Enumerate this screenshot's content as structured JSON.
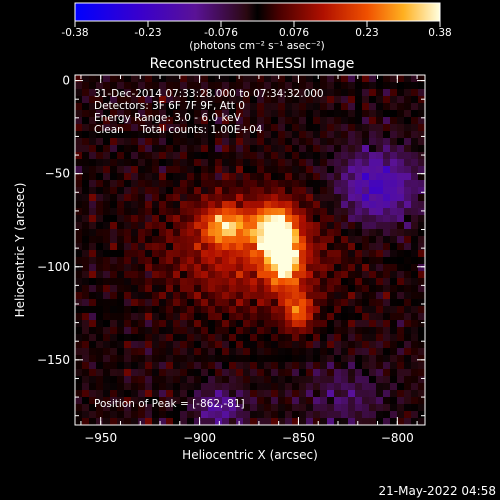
{
  "chart_data": {
    "type": "heatmap",
    "title": "Reconstructed RHESSI Image",
    "colorbar": {
      "range": [
        -0.38,
        0.38
      ],
      "ticks": [
        "-0.38",
        "-0.23",
        "-0.076",
        "0.076",
        "0.23",
        "0.38"
      ],
      "unit_label": "(photons cm⁻² s⁻¹ asec⁻²)"
    },
    "xlabel": "Heliocentric X (arcsec)",
    "ylabel": "Heliocentric Y (arcsec)",
    "xlim": [
      -963,
      -786
    ],
    "ylim": [
      -185,
      3
    ],
    "xticks": [
      {
        "value": -950,
        "label": "−950"
      },
      {
        "value": -900,
        "label": "−900"
      },
      {
        "value": -850,
        "label": "−850"
      },
      {
        "value": -800,
        "label": "−800"
      }
    ],
    "yticks": [
      {
        "value": 0,
        "label": "0"
      },
      {
        "value": -50,
        "label": "−50"
      },
      {
        "value": -100,
        "label": "−100"
      },
      {
        "value": -150,
        "label": "−150"
      }
    ],
    "info_lines": [
      "31-Dec-2014 07:33:28.000 to 07:34:32.000",
      "Detectors: 3F 6F 7F 9F, Att 0",
      "Energy Range: 3.0 - 6.0 keV",
      "Clean     Total counts: 1.00E+04"
    ],
    "peak_text": "Position of Peak = [-862,-81]",
    "sources": [
      {
        "x": -862,
        "y": -81,
        "amp": 0.38,
        "sx": 7,
        "sy": 9
      },
      {
        "x": -857,
        "y": -97,
        "amp": 0.3,
        "sx": 6,
        "sy": 10
      },
      {
        "x": -850,
        "y": -124,
        "amp": 0.22,
        "sx": 5,
        "sy": 7
      },
      {
        "x": -887,
        "y": -78,
        "amp": 0.24,
        "sx": 8,
        "sy": 7
      },
      {
        "x": -875,
        "y": -92,
        "amp": 0.14,
        "sx": 30,
        "sy": 22
      },
      {
        "x": -810,
        "y": -57,
        "amp": -0.2,
        "sx": 14,
        "sy": 14
      },
      {
        "x": -890,
        "y": -176,
        "amp": -0.14,
        "sx": 9,
        "sy": 8
      },
      {
        "x": -826,
        "y": -170,
        "amp": -0.08,
        "sx": 14,
        "sy": 12
      }
    ]
  },
  "timestamp": "21-May-2022 04:58"
}
